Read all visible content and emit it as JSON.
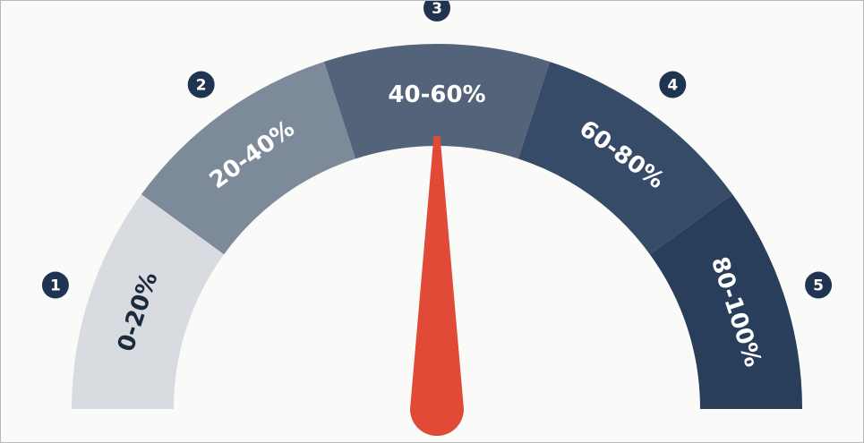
{
  "gauge": {
    "segments": [
      {
        "number": "1",
        "label": "0-20%",
        "color": "#d8dbe0",
        "text_color": "#1b2a3c"
      },
      {
        "number": "2",
        "label": "20-40%",
        "color": "#7d8a9a",
        "text_color": "#ffffff"
      },
      {
        "number": "3",
        "label": "40-60%",
        "color": "#53637a",
        "text_color": "#ffffff"
      },
      {
        "number": "4",
        "label": "60-80%",
        "color": "#354b68",
        "text_color": "#ffffff"
      },
      {
        "number": "5",
        "label": "80-100%",
        "color": "#283e5a",
        "text_color": "#ffffff"
      }
    ],
    "badge_color": "#1e3450",
    "needle_color": "#e14a36",
    "needle_value_percent": 50
  }
}
